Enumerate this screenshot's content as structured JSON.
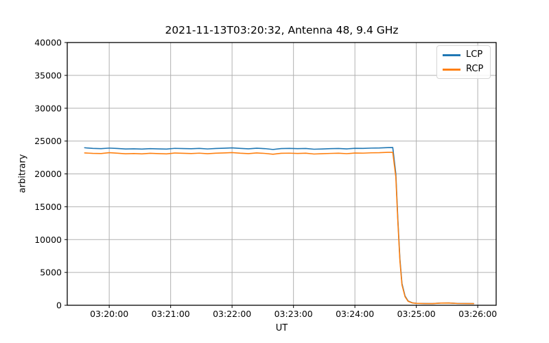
{
  "chart_data": {
    "type": "line",
    "title": "2021-11-13T03:20:32, Antenna 48, 9.4 GHz",
    "xlabel": "UT",
    "ylabel": "arbitrary",
    "x_unit": "seconds after 03:00:00 UT",
    "xlim": [
      1159,
      1578
    ],
    "ylim": [
      0,
      40000
    ],
    "grid": true,
    "grid_color": "#b0b0b0",
    "axis_color": "#000000",
    "background_color": "#ffffff",
    "x_ticks": [
      {
        "t": 1200,
        "label": "03:20:00"
      },
      {
        "t": 1260,
        "label": "03:21:00"
      },
      {
        "t": 1320,
        "label": "03:22:00"
      },
      {
        "t": 1380,
        "label": "03:23:00"
      },
      {
        "t": 1440,
        "label": "03:24:00"
      },
      {
        "t": 1500,
        "label": "03:25:00"
      },
      {
        "t": 1560,
        "label": "03:26:00"
      }
    ],
    "y_ticks": [
      {
        "v": 0,
        "label": "0"
      },
      {
        "v": 5000,
        "label": "5000"
      },
      {
        "v": 10000,
        "label": "10000"
      },
      {
        "v": 15000,
        "label": "15000"
      },
      {
        "v": 20000,
        "label": "20000"
      },
      {
        "v": 25000,
        "label": "25000"
      },
      {
        "v": 30000,
        "label": "30000"
      },
      {
        "v": 35000,
        "label": "35000"
      },
      {
        "v": 40000,
        "label": "40000"
      }
    ],
    "legend": {
      "position": "upper right",
      "entries": [
        {
          "name": "LCP",
          "color": "#1f77b4"
        },
        {
          "name": "RCP",
          "color": "#ff7f0e"
        }
      ]
    },
    "series": [
      {
        "name": "LCP",
        "color": "#1f77b4",
        "points": [
          [
            1176,
            23980
          ],
          [
            1184,
            23880
          ],
          [
            1192,
            23840
          ],
          [
            1200,
            23930
          ],
          [
            1208,
            23870
          ],
          [
            1216,
            23790
          ],
          [
            1224,
            23820
          ],
          [
            1232,
            23780
          ],
          [
            1240,
            23850
          ],
          [
            1248,
            23810
          ],
          [
            1256,
            23780
          ],
          [
            1264,
            23890
          ],
          [
            1272,
            23860
          ],
          [
            1280,
            23830
          ],
          [
            1288,
            23880
          ],
          [
            1296,
            23800
          ],
          [
            1304,
            23870
          ],
          [
            1312,
            23910
          ],
          [
            1320,
            23960
          ],
          [
            1328,
            23880
          ],
          [
            1336,
            23820
          ],
          [
            1344,
            23910
          ],
          [
            1352,
            23850
          ],
          [
            1360,
            23720
          ],
          [
            1368,
            23860
          ],
          [
            1376,
            23880
          ],
          [
            1384,
            23840
          ],
          [
            1392,
            23870
          ],
          [
            1400,
            23760
          ],
          [
            1408,
            23790
          ],
          [
            1416,
            23840
          ],
          [
            1424,
            23870
          ],
          [
            1432,
            23810
          ],
          [
            1440,
            23900
          ],
          [
            1448,
            23880
          ],
          [
            1456,
            23930
          ],
          [
            1464,
            23950
          ],
          [
            1472,
            24000
          ],
          [
            1477,
            24010
          ],
          [
            1480,
            20000
          ],
          [
            1482,
            13000
          ],
          [
            1484,
            7000
          ],
          [
            1486,
            3300
          ],
          [
            1489,
            1400
          ],
          [
            1492,
            650
          ],
          [
            1496,
            380
          ],
          [
            1500,
            300
          ],
          [
            1508,
            270
          ],
          [
            1516,
            260
          ],
          [
            1524,
            340
          ],
          [
            1532,
            350
          ],
          [
            1540,
            280
          ],
          [
            1548,
            265
          ],
          [
            1556,
            255
          ]
        ]
      },
      {
        "name": "RCP",
        "color": "#ff7f0e",
        "points": [
          [
            1176,
            23190
          ],
          [
            1184,
            23130
          ],
          [
            1192,
            23100
          ],
          [
            1200,
            23230
          ],
          [
            1208,
            23150
          ],
          [
            1216,
            23060
          ],
          [
            1224,
            23100
          ],
          [
            1232,
            23050
          ],
          [
            1240,
            23140
          ],
          [
            1248,
            23090
          ],
          [
            1256,
            23050
          ],
          [
            1264,
            23180
          ],
          [
            1272,
            23140
          ],
          [
            1280,
            23100
          ],
          [
            1288,
            23160
          ],
          [
            1296,
            23070
          ],
          [
            1304,
            23150
          ],
          [
            1312,
            23190
          ],
          [
            1320,
            23240
          ],
          [
            1328,
            23150
          ],
          [
            1336,
            23090
          ],
          [
            1344,
            23190
          ],
          [
            1352,
            23120
          ],
          [
            1360,
            23000
          ],
          [
            1368,
            23140
          ],
          [
            1376,
            23160
          ],
          [
            1384,
            23110
          ],
          [
            1392,
            23150
          ],
          [
            1400,
            23030
          ],
          [
            1408,
            23070
          ],
          [
            1416,
            23120
          ],
          [
            1424,
            23150
          ],
          [
            1432,
            23080
          ],
          [
            1440,
            23180
          ],
          [
            1448,
            23160
          ],
          [
            1456,
            23210
          ],
          [
            1464,
            23230
          ],
          [
            1472,
            23280
          ],
          [
            1477,
            23290
          ],
          [
            1480,
            19500
          ],
          [
            1482,
            12600
          ],
          [
            1484,
            6700
          ],
          [
            1486,
            3100
          ],
          [
            1489,
            1300
          ],
          [
            1492,
            600
          ],
          [
            1496,
            360
          ],
          [
            1500,
            290
          ],
          [
            1508,
            260
          ],
          [
            1516,
            255
          ],
          [
            1524,
            335
          ],
          [
            1532,
            345
          ],
          [
            1540,
            275
          ],
          [
            1548,
            260
          ],
          [
            1556,
            250
          ]
        ]
      }
    ]
  }
}
